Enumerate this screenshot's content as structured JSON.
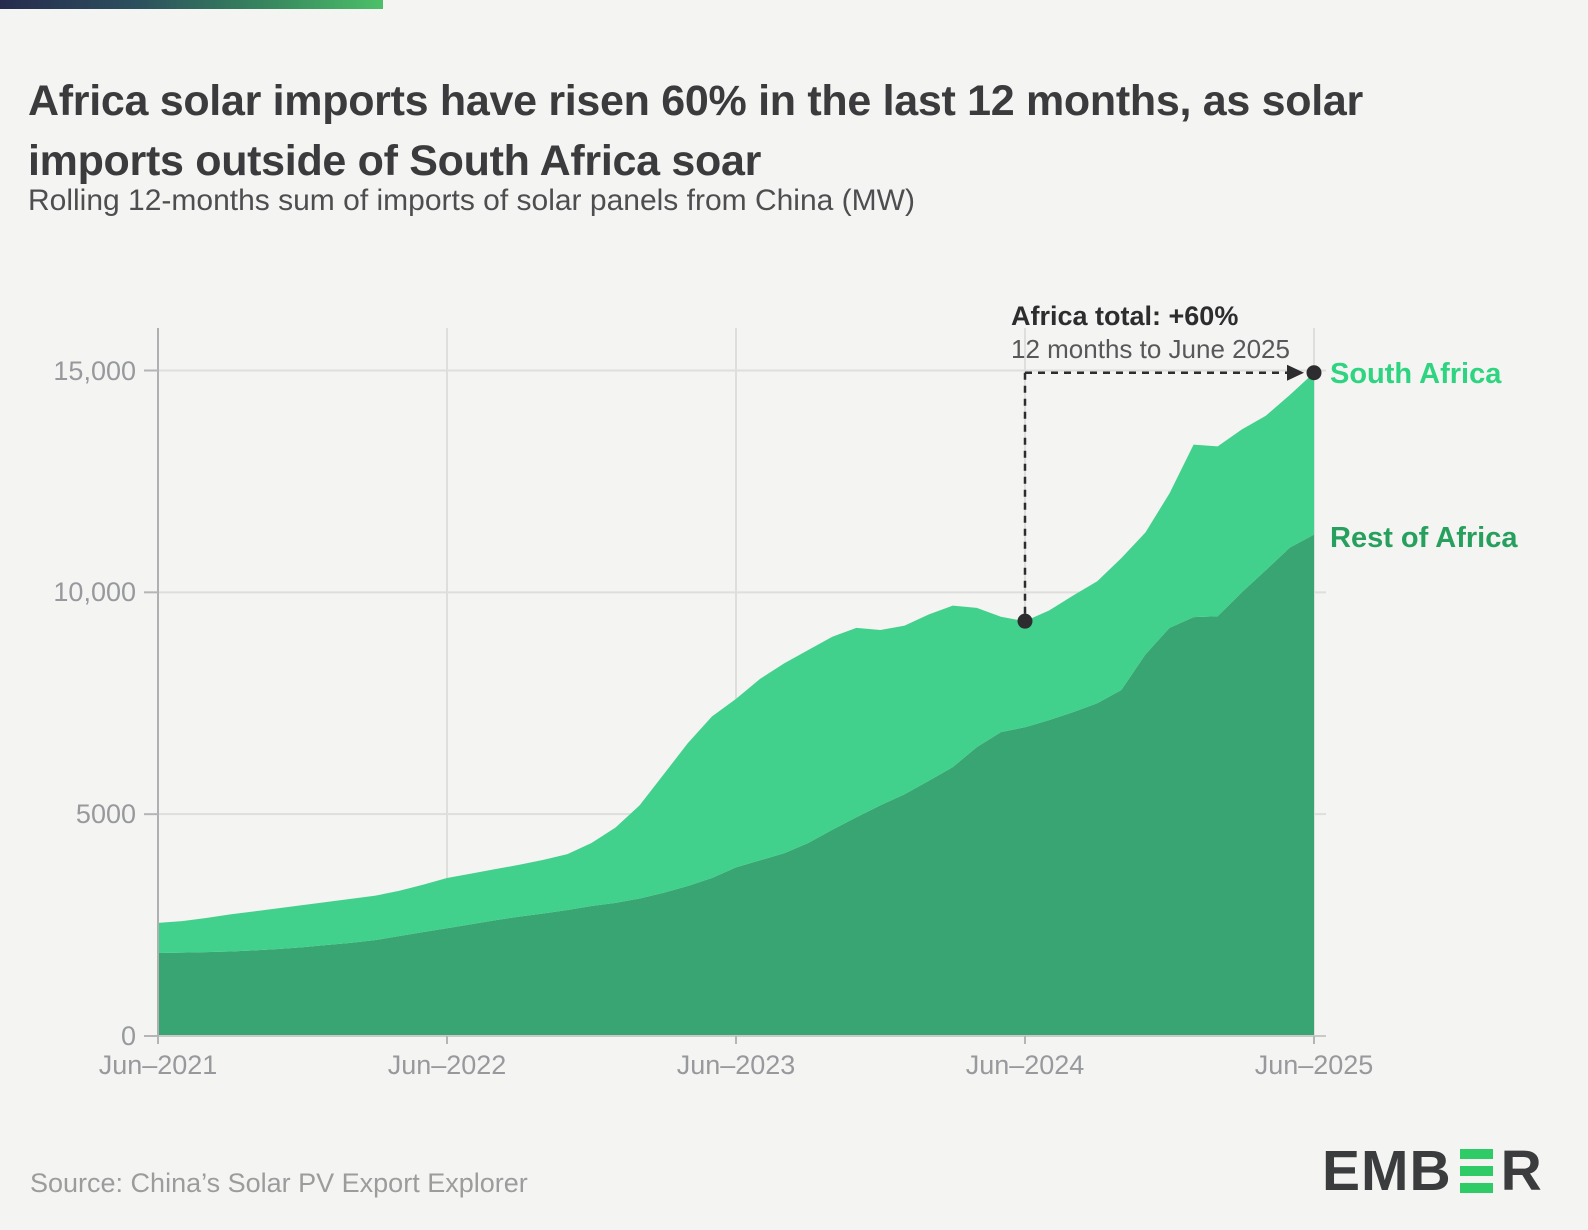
{
  "header": {
    "title": "Africa solar imports have risen 60% in the last 12 months, as solar imports outside of South Africa soar",
    "subtitle": "Rolling 12-months sum of imports of solar panels from China (MW)"
  },
  "chart_data": {
    "type": "area",
    "stacked": true,
    "title": "Rolling 12-months sum of imports of solar panels from China (MW)",
    "x_unit": "months, Jun-2021 to Jun-2025 (one value per month)",
    "ylim": [
      0,
      15000
    ],
    "grid": true,
    "y_ticks": [
      {
        "value": 0,
        "label": "0"
      },
      {
        "value": 5000,
        "label": "5000"
      },
      {
        "value": 10000,
        "label": "10,000"
      },
      {
        "value": 15000,
        "label": "15,000"
      }
    ],
    "x_ticks": [
      {
        "index": 0,
        "label": "Jun–2021"
      },
      {
        "index": 12,
        "label": "Jun–2022"
      },
      {
        "index": 24,
        "label": "Jun–2023"
      },
      {
        "index": 36,
        "label": "Jun–2024"
      },
      {
        "index": 48,
        "label": "Jun–2025"
      }
    ],
    "series": [
      {
        "name": "Rest of Africa",
        "color": "#38a572",
        "label_color": "#28a05d",
        "values": [
          1870,
          1880,
          1890,
          1905,
          1930,
          1960,
          2000,
          2050,
          2100,
          2160,
          2250,
          2340,
          2430,
          2520,
          2610,
          2690,
          2760,
          2840,
          2930,
          3000,
          3100,
          3230,
          3380,
          3560,
          3800,
          3960,
          4120,
          4350,
          4650,
          4930,
          5200,
          5450,
          5750,
          6060,
          6510,
          6850,
          6960,
          7120,
          7300,
          7500,
          7800,
          8600,
          9200,
          9440,
          9460,
          10000,
          10500,
          11010,
          11300
        ]
      },
      {
        "name": "South Africa",
        "color": "#41d18c",
        "label_color": "#2ed47f",
        "values": [
          680,
          710,
          770,
          835,
          880,
          920,
          950,
          970,
          990,
          1000,
          1020,
          1070,
          1130,
          1140,
          1150,
          1170,
          1210,
          1260,
          1420,
          1700,
          2100,
          2670,
          3220,
          3640,
          3800,
          4090,
          4280,
          4350,
          4350,
          4270,
          3950,
          3800,
          3750,
          3640,
          3140,
          2600,
          2390,
          2470,
          2630,
          2750,
          2970,
          2750,
          3030,
          3890,
          3830,
          3670,
          3480,
          3440,
          3650
        ]
      }
    ],
    "annotation": {
      "title": "Africa total: +60%",
      "subtitle": "12 months to June 2025",
      "from": {
        "x_index": 36,
        "total": 9350
      },
      "to": {
        "x_index": 48,
        "total": 14950
      },
      "color": "#2d2d2f"
    }
  },
  "footer": {
    "source": "Source: China’s Solar PV Export Explorer",
    "logo": {
      "prefix": "EMB",
      "suffix": "R",
      "bar_color": "#2ecb66"
    }
  }
}
